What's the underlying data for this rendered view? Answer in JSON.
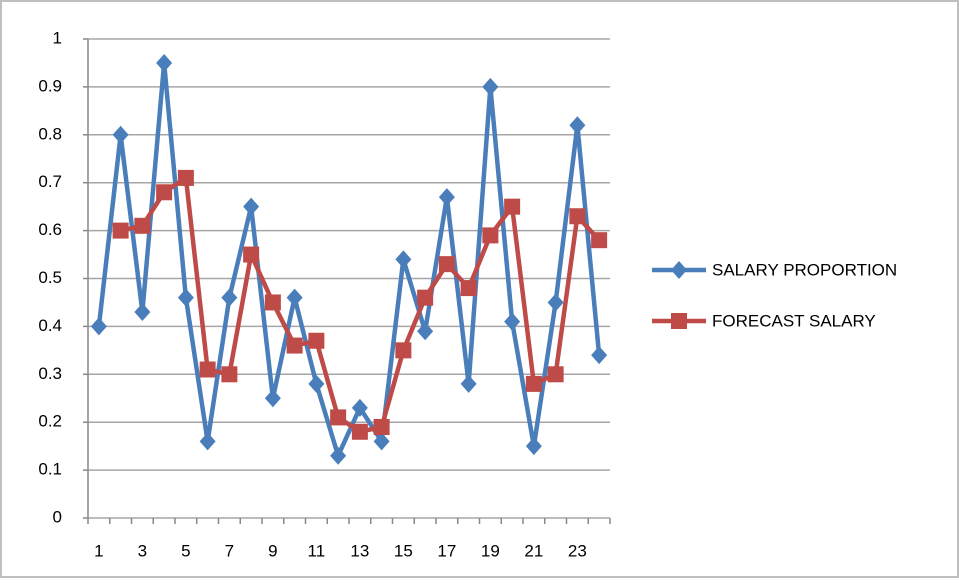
{
  "chart_data": {
    "type": "line",
    "categories": [
      "1",
      null,
      "3",
      null,
      "5",
      null,
      "7",
      null,
      "9",
      null,
      "11",
      null,
      "13",
      null,
      "15",
      null,
      "17",
      null,
      "19",
      null,
      "21",
      null,
      "23",
      null
    ],
    "series": [
      {
        "name": "SALARY PROPORTION",
        "color": "#4a7ebb",
        "marker": "diamond",
        "values": [
          0.4,
          0.8,
          0.43,
          0.95,
          0.46,
          0.16,
          0.46,
          0.65,
          0.25,
          0.46,
          0.28,
          0.13,
          0.23,
          0.16,
          0.54,
          0.39,
          0.67,
          0.28,
          0.9,
          0.41,
          0.15,
          0.45,
          0.82,
          0.34
        ]
      },
      {
        "name": "FORECAST SALARY",
        "color": "#be4b48",
        "marker": "square",
        "values": [
          null,
          0.6,
          0.61,
          0.68,
          0.71,
          0.31,
          0.3,
          0.55,
          0.45,
          0.36,
          0.37,
          0.21,
          0.18,
          0.19,
          0.35,
          0.46,
          0.53,
          0.48,
          0.59,
          0.65,
          0.28,
          0.3,
          0.63,
          0.58
        ]
      }
    ],
    "ylim": [
      0,
      1
    ],
    "yticks": [
      0,
      0.1,
      0.2,
      0.3,
      0.4,
      0.5,
      0.6,
      0.7,
      0.8,
      0.9,
      1
    ],
    "grid": true,
    "legend": "right"
  }
}
